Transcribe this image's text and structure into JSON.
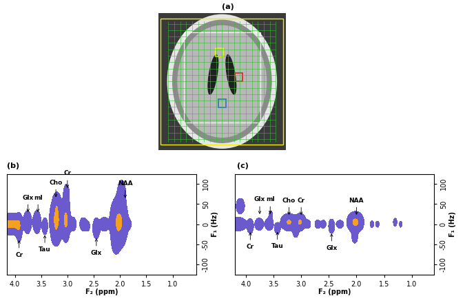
{
  "image_panel": {
    "label": "(a)"
  },
  "chart_data": [
    {
      "type": "contour",
      "label": "(b)",
      "xlabel": "F₂ (ppm)",
      "ylabel": "F₁ (Hz)",
      "xlim": [
        4.15,
        0.55
      ],
      "ylim": [
        -125,
        125
      ],
      "xticks": [
        4.0,
        3.5,
        3.0,
        2.5,
        2.0,
        1.5,
        1.0
      ],
      "yticks": [
        100,
        50,
        0,
        -50,
        -100
      ],
      "peaks": [
        {
          "x": 4.12,
          "y": 0,
          "x_width": 0.09,
          "y_width": 12,
          "height": 1.0
        },
        {
          "x": 3.97,
          "y": 0,
          "x_width": 0.06,
          "y_width": 12,
          "height": 0.7
        },
        {
          "x": 3.92,
          "y": -10,
          "x_width": 0.03,
          "y_width": 18,
          "height": 0.5
        },
        {
          "x": 3.76,
          "y": 5,
          "x_width": 0.04,
          "y_width": 15,
          "height": 0.5
        },
        {
          "x": 3.58,
          "y": 5,
          "x_width": 0.04,
          "y_width": 15,
          "height": 0.5
        },
        {
          "x": 3.43,
          "y": -5,
          "x_width": 0.03,
          "y_width": 12,
          "height": 0.35
        },
        {
          "x": 3.21,
          "y": 10,
          "x_width": 0.06,
          "y_width": 25,
          "height": 1.0
        },
        {
          "x": 3.2,
          "y": 50,
          "x_width": 0.04,
          "y_width": 15,
          "height": 0.45
        },
        {
          "x": 3.22,
          "y": -30,
          "x_width": 0.04,
          "y_width": 12,
          "height": 0.4
        },
        {
          "x": 3.03,
          "y": 10,
          "x_width": 0.04,
          "y_width": 25,
          "height": 1.0
        },
        {
          "x": 3.02,
          "y": 70,
          "x_width": 0.03,
          "y_width": 15,
          "height": 0.5
        },
        {
          "x": 2.9,
          "y": 0,
          "x_width": 0.04,
          "y_width": 10,
          "height": 0.35
        },
        {
          "x": 2.7,
          "y": 0,
          "x_width": 0.04,
          "y_width": 10,
          "height": 0.3
        },
        {
          "x": 2.62,
          "y": -5,
          "x_width": 0.03,
          "y_width": 8,
          "height": 0.25
        },
        {
          "x": 2.45,
          "y": -10,
          "x_width": 0.04,
          "y_width": 15,
          "height": 0.35
        },
        {
          "x": 2.3,
          "y": 0,
          "x_width": 0.05,
          "y_width": 10,
          "height": 0.35
        },
        {
          "x": 2.02,
          "y": 5,
          "x_width": 0.08,
          "y_width": 30,
          "height": 1.0
        },
        {
          "x": 1.97,
          "y": 75,
          "x_width": 0.04,
          "y_width": 18,
          "height": 0.5
        },
        {
          "x": 2.08,
          "y": -45,
          "x_width": 0.04,
          "y_width": 15,
          "height": 0.4
        },
        {
          "x": 1.85,
          "y": 0,
          "x_width": 0.04,
          "y_width": 8,
          "height": 0.25
        }
      ],
      "annotations": [
        {
          "text": "Glx",
          "x": 3.75,
          "y": 25
        },
        {
          "text": "mI",
          "x": 3.56,
          "y": 25
        },
        {
          "text": "Cho",
          "x": 3.22,
          "y": 62
        },
        {
          "text": "Cr",
          "x": 3.0,
          "y": 85
        },
        {
          "text": "NAA",
          "x": 1.9,
          "y": 60
        },
        {
          "text": "Cr",
          "x": 3.92,
          "y": -35
        },
        {
          "text": "Tau",
          "x": 3.43,
          "y": -22
        },
        {
          "text": "Glx",
          "x": 2.45,
          "y": -30
        }
      ]
    },
    {
      "type": "contour",
      "label": "(c)",
      "xlabel": "F₂ (ppm)",
      "ylabel": "F₁ (Hz)",
      "xlim": [
        4.2,
        0.6
      ],
      "ylim": [
        -125,
        125
      ],
      "xticks": [
        4.0,
        3.5,
        3.0,
        2.5,
        2.0,
        1.5,
        1.0
      ],
      "yticks": [
        100,
        50,
        0,
        -50,
        -100
      ],
      "peaks": [
        {
          "x": 4.15,
          "y": 0,
          "x_width": 0.08,
          "y_width": 8,
          "height": 0.8
        },
        {
          "x": 4.1,
          "y": 45,
          "x_width": 0.04,
          "y_width": 10,
          "height": 0.5
        },
        {
          "x": 3.92,
          "y": -5,
          "x_width": 0.03,
          "y_width": 10,
          "height": 0.45
        },
        {
          "x": 3.76,
          "y": 0,
          "x_width": 0.04,
          "y_width": 8,
          "height": 0.5
        },
        {
          "x": 3.58,
          "y": 0,
          "x_width": 0.04,
          "y_width": 8,
          "height": 0.5
        },
        {
          "x": 3.55,
          "y": 20,
          "x_width": 0.02,
          "y_width": 8,
          "height": 0.3
        },
        {
          "x": 3.43,
          "y": -10,
          "x_width": 0.03,
          "y_width": 8,
          "height": 0.35
        },
        {
          "x": 3.22,
          "y": 5,
          "x_width": 0.07,
          "y_width": 10,
          "height": 0.9
        },
        {
          "x": 3.02,
          "y": 5,
          "x_width": 0.05,
          "y_width": 10,
          "height": 0.9
        },
        {
          "x": 3.1,
          "y": -20,
          "x_width": 0.03,
          "y_width": 8,
          "height": 0.3
        },
        {
          "x": 2.88,
          "y": 0,
          "x_width": 0.03,
          "y_width": 6,
          "height": 0.35
        },
        {
          "x": 2.7,
          "y": 0,
          "x_width": 0.03,
          "y_width": 6,
          "height": 0.35
        },
        {
          "x": 2.6,
          "y": 0,
          "x_width": 0.03,
          "y_width": 6,
          "height": 0.3
        },
        {
          "x": 2.45,
          "y": -5,
          "x_width": 0.03,
          "y_width": 10,
          "height": 0.4
        },
        {
          "x": 2.3,
          "y": 0,
          "x_width": 0.04,
          "y_width": 6,
          "height": 0.3
        },
        {
          "x": 2.02,
          "y": 5,
          "x_width": 0.07,
          "y_width": 12,
          "height": 1.0
        },
        {
          "x": 2.03,
          "y": -30,
          "x_width": 0.03,
          "y_width": 10,
          "height": 0.35
        },
        {
          "x": 1.72,
          "y": 0,
          "x_width": 0.02,
          "y_width": 5,
          "height": 0.3
        },
        {
          "x": 1.62,
          "y": 0,
          "x_width": 0.02,
          "y_width": 5,
          "height": 0.25
        },
        {
          "x": 1.3,
          "y": 5,
          "x_width": 0.02,
          "y_width": 6,
          "height": 0.3
        },
        {
          "x": 1.2,
          "y": 0,
          "x_width": 0.015,
          "y_width": 5,
          "height": 0.25
        }
      ],
      "annotations": [
        {
          "text": "Glx",
          "x": 3.75,
          "y": 20
        },
        {
          "text": "mI",
          "x": 3.56,
          "y": 20
        },
        {
          "text": "Cho",
          "x": 3.22,
          "y": 18
        },
        {
          "text": "Cr",
          "x": 3.0,
          "y": 18
        },
        {
          "text": "NAA",
          "x": 2.0,
          "y": 18
        },
        {
          "text": "Cr",
          "x": 3.92,
          "y": -15
        },
        {
          "text": "Tau",
          "x": 3.43,
          "y": -14
        },
        {
          "text": "Glx",
          "x": 2.45,
          "y": -18
        }
      ]
    }
  ]
}
